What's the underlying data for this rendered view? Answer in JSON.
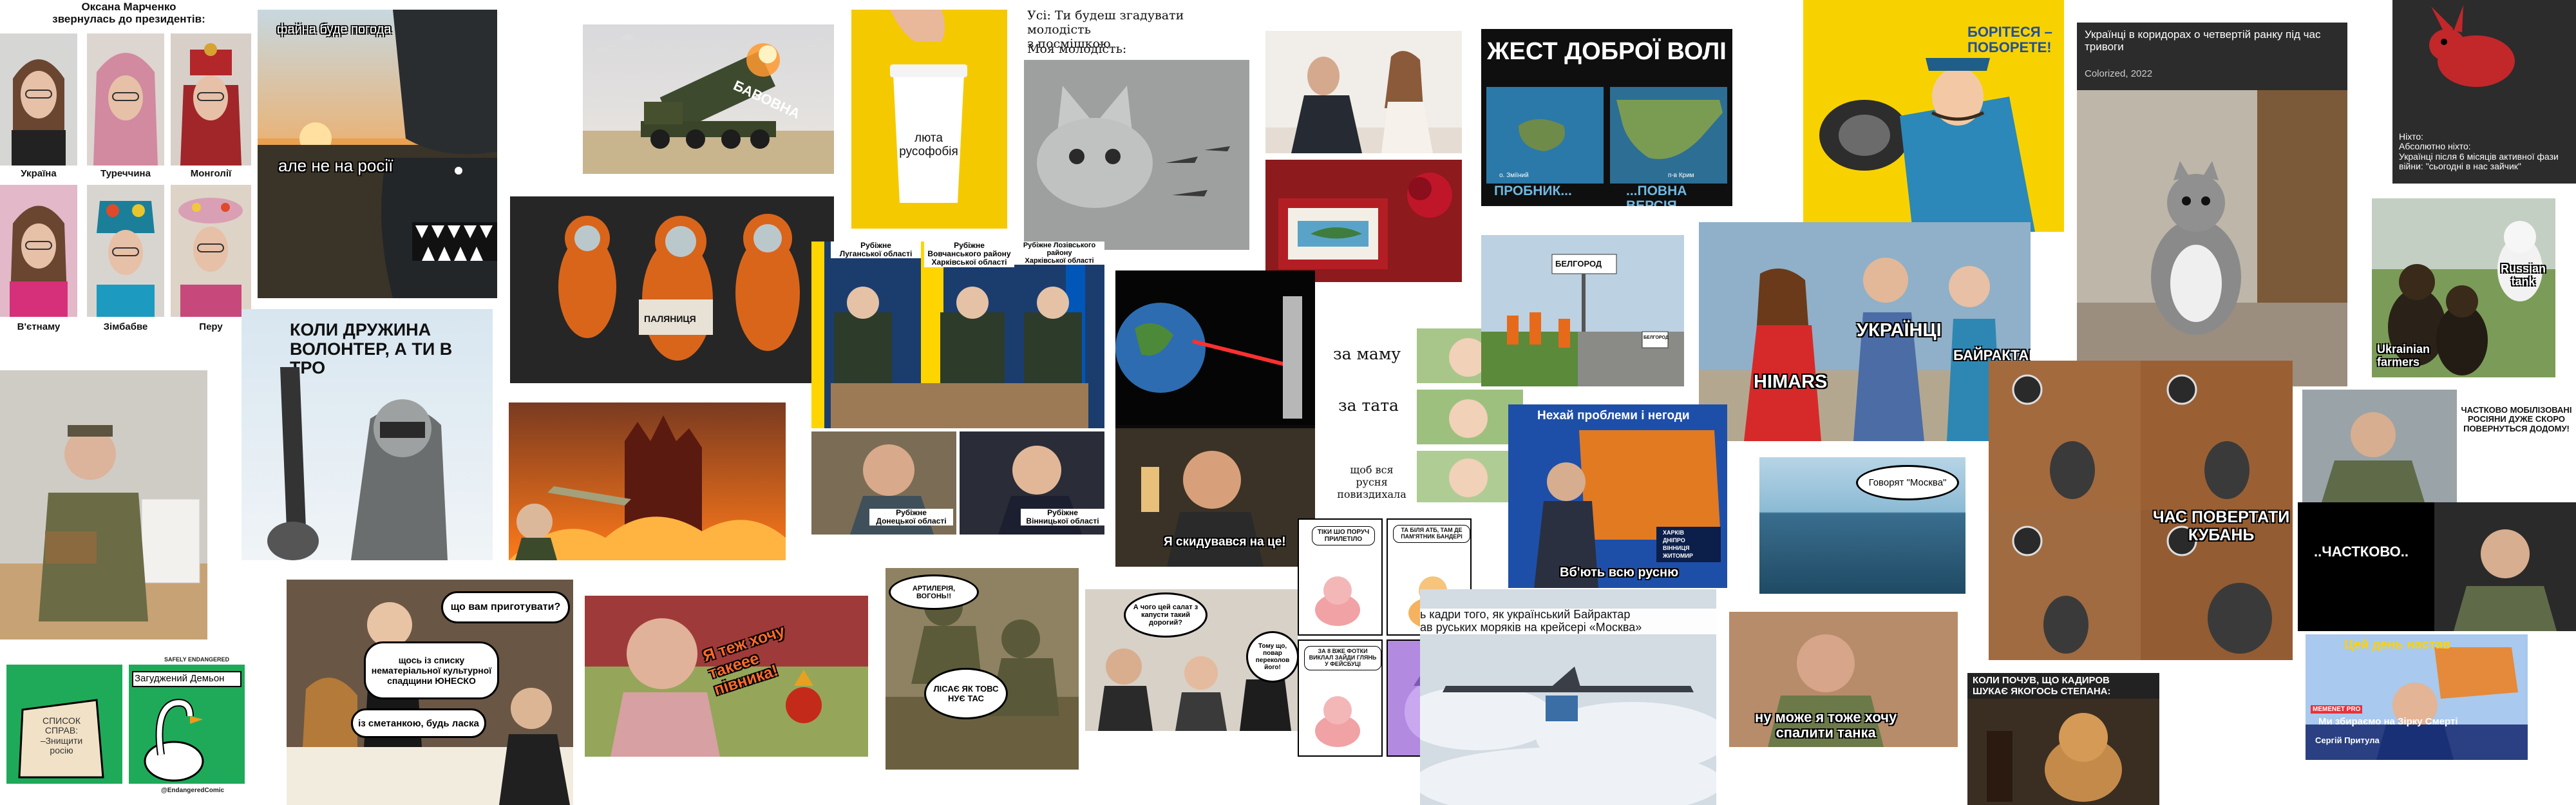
{
  "collage": {
    "memes": {
      "marchenko": {
        "title": "Оксана Марченко\nзвернулась до президентів:",
        "labels": [
          "Україна",
          "Туреччина",
          "Монголії",
          "В'єтнаму",
          "Зімбабве",
          "Перу"
        ]
      },
      "weather": {
        "top": "файна буде погода",
        "bottom": "але не на росії"
      },
      "bavovna": {
        "label": "БАВОВНА"
      },
      "coffee": {
        "text": "люта\nрусофобія"
      },
      "youth": {
        "line1": "Усі: Ти будеш згадувати молодість\nз посмішкою",
        "line2": "Моя молодість:"
      },
      "gesture": {
        "title": "ЖЕСТ ДОБРОЇ ВОЛІ",
        "left_small": "о. Зміїний",
        "right_small": "п-в Крим",
        "left_cap": "ПРОБНИК...",
        "right_cap": "...ПОВНА ВЕРСІЯ"
      },
      "fight": {
        "text": "БОРІТЕСЯ –\nПОБОРЕТЕ!"
      },
      "corridor": {
        "caption": "Українці в коридорах о четвертій ранку під час тривоги",
        "sub": "Colorized, 2022"
      },
      "rabbit": {
        "text": "Ніхто:\nАбсолютно ніхто:\nУкраїнці після 6 місяців активної фази війни: \"сьогодні в нас зайчик\""
      },
      "druzhyna": {
        "text": "КОЛИ ДРУЖИНА\nВОЛОНТЕР, А ТИ В ТРО"
      },
      "palyanytsia": {
        "sign": "ПАЛЯНИЦЯ"
      },
      "ministers": {
        "labels": [
          "Рубіжне\nЛуганської області",
          "Рубіжне\nВовчанського району\nХарківської області",
          "Рубіжне Лозівського району\nХарківської області"
        ],
        "bottom_labels": [
          "Рубіжне\nДонецької області",
          "Рубіжне\nВінницької області"
        ]
      },
      "shooting": {
        "caption": "Я скидувався на це!"
      },
      "mama": {
        "lines": [
          "за маму",
          "за тата",
          "щоб вся русня\nповиздихала"
        ]
      },
      "belgorod": {
        "sign": "БЕЛГОРОД",
        "sign2": "БЕЛГОРОД"
      },
      "distracted": {
        "left": "HIMARS",
        "middle": "УКРАЇНЦІ",
        "right": "БАЙРАКТАР"
      },
      "dogs": {
        "right": "Russian\ntank",
        "left": "Ukrainian\nfarmers"
      },
      "mobilization": {
        "text": "ЧАСТКОВО МОБІЛІЗОВАНІ\nРОСІЯНИ ДУЖЕ СКОРО\nПОВЕРНУТЬСЯ ДОДОМУ!"
      },
      "problems": {
        "title": "Нехай проблеми і негоди",
        "caption": "Вб'ють всю русню",
        "table": [
          "ХАРКІВ",
          "ДНІПРО",
          "ВІННИЦЯ",
          "ЖИТОМИР"
        ]
      },
      "moscow": {
        "bubble": "Говорят \"Москва\""
      },
      "kuban": {
        "text": "ЧАС ПОВЕРТАТИ\nКУБАНЬ"
      },
      "chastkovo": {
        "text": "..ЧАСТКОВО.."
      },
      "waiter": {
        "q": "що вам приготувати?",
        "a1": "щось із списку\nнематеріальної культурної\nспадщини ЮНЕСКО",
        "a2": "із сметанкою, будь ласка"
      },
      "goose": {
        "header": "SAFELY ENDANGERED",
        "list": "СПИСОК\nСПРАВ:\n–Знищити\nросію",
        "title": "Загуджений Демьон",
        "credit": "@EndangeredComic"
      },
      "macron": {
        "text": "Я теж хочу\nтакеее\nпівника!"
      },
      "soldiers": {
        "b1": "АРТИЛЕРІЯ, ВОГОНЬ!!",
        "b2": "ЛІСАЄ ЯК ТОВС НУЄ ТАС"
      },
      "salad": {
        "b1": "А чого цей салат з капусти такий дорогий?",
        "b2": "Тому що, повар переколов його!"
      },
      "comic": {
        "p1": "ТІКИ ШО ПОРУЧ ПРИЛЕТІЛО",
        "p2": "ТА БІЛЯ АТБ, ТАМ ДЕ ПАМ'ЯТНИК БАНДЕРІ",
        "p3": "ЗА 8 ВЖЕ ФОТКИ ВИКЛАЛ ЗАЙДИ ГЛЯНЬ У ФЕЙСБУЦІ"
      },
      "bayraktar": {
        "text": "ь кадри того, як український Байрактар\nав руських моряків на крейсері «Москва»"
      },
      "tank": {
        "text": "ну може я тоже хочу\nспалити танка"
      },
      "kadyrov": {
        "text": "КОЛИ ПОЧУВ, ЩО КАДИРОВ\nШУКАЄ ЯКОГОСЬ СТЕПАНА:"
      },
      "tv": {
        "title": "Цей день настав",
        "tag": "MEMENET PRO",
        "name": "Сергій Притула",
        "ticker": "Ми збираємо на Зірку Смерті"
      }
    }
  },
  "colors": {
    "yellow": "#f5d100",
    "blue": "#1e5aa8",
    "orange": "#e8701a",
    "black": "#000000",
    "green": "#1f9a55"
  }
}
